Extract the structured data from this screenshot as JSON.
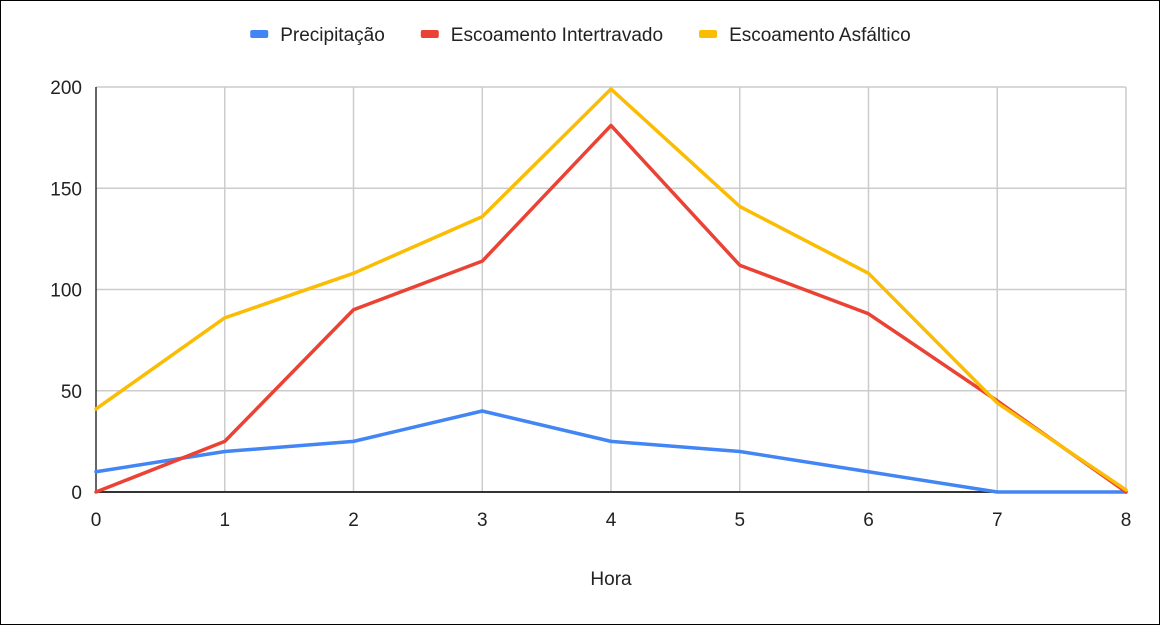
{
  "chart_data": {
    "type": "line",
    "title": "",
    "xlabel": "Hora",
    "ylabel": "",
    "x": [
      0,
      1,
      2,
      3,
      4,
      5,
      6,
      7,
      8
    ],
    "xlim": [
      0,
      8
    ],
    "ylim": [
      0,
      200
    ],
    "yticks": [
      0,
      50,
      100,
      150,
      200
    ],
    "grid": true,
    "legend_position": "top",
    "series": [
      {
        "name": "Precipitação",
        "color": "#4285f4",
        "values": [
          10,
          20,
          25,
          40,
          25,
          20,
          10,
          0,
          0
        ]
      },
      {
        "name": "Escoamento Intertravado",
        "color": "#ea4335",
        "values": [
          0,
          25,
          90,
          114,
          181,
          112,
          88,
          45,
          0
        ]
      },
      {
        "name": "Escoamento Asfáltico",
        "color": "#fbbc04",
        "values": [
          41,
          86,
          108,
          136,
          199,
          141,
          108,
          44,
          1
        ]
      }
    ]
  }
}
